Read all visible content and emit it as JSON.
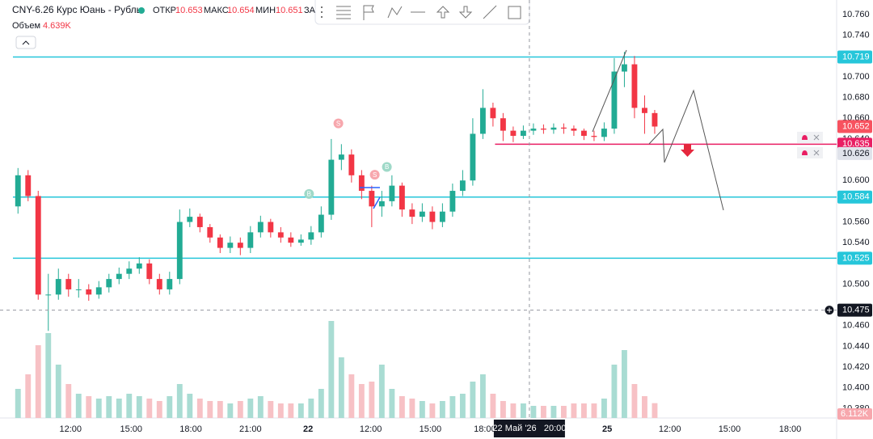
{
  "chart_data": {
    "type": "candlestick",
    "title": "CNY-6.26 Курс Юань - Рубль",
    "header": {
      "open_label": "ОТКР",
      "open": 10.653,
      "high_label": "МАКС",
      "high": 10.654,
      "low_label": "МИН",
      "low": 10.651,
      "cut_label": "ЗА"
    },
    "up_color": "#22ab94",
    "down_color": "#f23645",
    "volume_up_color": "#a9dcd3",
    "volume_down_color": "#f7c1c5",
    "xlim": [
      0,
      81.5
    ],
    "ylim": [
      10.371,
      10.774
    ],
    "yticks": [
      {
        "value": 10.76,
        "label": "10.760"
      },
      {
        "value": 10.74,
        "label": "10.740"
      },
      {
        "value": 10.7,
        "label": "10.700"
      },
      {
        "value": 10.68,
        "label": "10.680"
      },
      {
        "value": 10.66,
        "label": "10.660"
      },
      {
        "value": 10.64,
        "label": "10.640"
      },
      {
        "value": 10.6,
        "label": "10.600"
      },
      {
        "value": 10.56,
        "label": "10.560"
      },
      {
        "value": 10.54,
        "label": "10.540"
      },
      {
        "value": 10.5,
        "label": "10.500"
      },
      {
        "value": 10.46,
        "label": "10.460"
      },
      {
        "value": 10.44,
        "label": "10.440"
      },
      {
        "value": 10.42,
        "label": "10.420"
      },
      {
        "value": 10.4,
        "label": "10.400"
      },
      {
        "value": 10.38,
        "label": "10.380"
      }
    ],
    "xticks": [
      {
        "value": 5.7,
        "label": "12:00"
      },
      {
        "value": 11.7,
        "label": "15:00"
      },
      {
        "value": 17.6,
        "label": "18:00"
      },
      {
        "value": 23.5,
        "label": "21:00"
      },
      {
        "value": 29.2,
        "label": "22"
      },
      {
        "value": 35.4,
        "label": "12:00"
      },
      {
        "value": 41.3,
        "label": "15:00"
      },
      {
        "value": 46.7,
        "label": "18:00"
      },
      {
        "value": 58.8,
        "label": "25"
      },
      {
        "value": 65,
        "label": "12:00"
      },
      {
        "value": 70.9,
        "label": "15:00"
      },
      {
        "value": 76.9,
        "label": "18:00"
      }
    ],
    "x": [
      0.5,
      1.5,
      2.5,
      3.5,
      4.5,
      5.5,
      6.5,
      7.5,
      8.5,
      9.5,
      10.5,
      11.5,
      12.5,
      13.5,
      14.5,
      15.5,
      16.5,
      17.5,
      18.5,
      19.5,
      20.5,
      21.5,
      22.5,
      23.5,
      24.5,
      25.5,
      26.5,
      27.5,
      28.5,
      29.5,
      30.5,
      31.5,
      32.5,
      33.5,
      34.5,
      35.5,
      36.5,
      37.5,
      38.5,
      39.5,
      40.5,
      41.5,
      42.5,
      43.5,
      44.5,
      45.5,
      46.5,
      47.5,
      48.5,
      49.5,
      50.5,
      51.5,
      52.5,
      53.5,
      54.5,
      55.5,
      56.5,
      57.5,
      58.5,
      59.5,
      60.5,
      61.5,
      62.5,
      63.5
    ],
    "open": [
      10.575,
      10.605,
      10.585,
      10.49,
      10.49,
      10.505,
      10.495,
      10.495,
      10.49,
      10.497,
      10.505,
      10.51,
      10.515,
      10.52,
      10.505,
      10.495,
      10.505,
      10.56,
      10.565,
      10.555,
      10.545,
      10.535,
      10.54,
      10.535,
      10.55,
      10.56,
      10.55,
      10.545,
      10.54,
      10.543,
      10.55,
      10.567,
      10.62,
      10.625,
      10.605,
      10.59,
      10.575,
      10.58,
      10.595,
      10.572,
      10.565,
      10.57,
      10.56,
      10.57,
      10.59,
      10.6,
      10.645,
      10.67,
      10.66,
      10.648,
      10.643,
      10.648,
      10.65,
      10.649,
      10.651,
      10.65,
      10.648,
      10.643,
      10.642,
      10.65,
      10.705,
      10.712,
      10.67,
      10.665
    ],
    "high": [
      10.612,
      10.61,
      10.59,
      10.51,
      10.515,
      10.51,
      10.505,
      10.5,
      10.503,
      10.51,
      10.516,
      10.522,
      10.526,
      10.524,
      10.51,
      10.512,
      10.572,
      10.573,
      10.568,
      10.558,
      10.548,
      10.546,
      10.545,
      10.556,
      10.566,
      10.563,
      10.555,
      10.55,
      10.548,
      10.556,
      10.575,
      10.64,
      10.635,
      10.63,
      10.61,
      10.595,
      10.59,
      10.605,
      10.598,
      10.578,
      10.578,
      10.575,
      10.578,
      10.597,
      10.61,
      10.66,
      10.688,
      10.675,
      10.665,
      10.652,
      10.653,
      10.655,
      10.654,
      10.655,
      10.655,
      10.653,
      10.65,
      10.648,
      10.656,
      10.718,
      10.724,
      10.72,
      10.682,
      10.668
    ],
    "low": [
      10.568,
      10.58,
      10.485,
      10.455,
      10.485,
      10.488,
      10.487,
      10.484,
      10.486,
      10.492,
      10.5,
      10.505,
      10.51,
      10.5,
      10.49,
      10.49,
      10.5,
      10.555,
      10.55,
      10.54,
      10.53,
      10.53,
      10.528,
      10.53,
      10.545,
      10.545,
      10.54,
      10.536,
      10.537,
      10.538,
      10.545,
      10.562,
      10.61,
      10.598,
      10.582,
      10.555,
      10.565,
      10.575,
      10.565,
      10.558,
      10.56,
      10.553,
      10.555,
      10.565,
      10.585,
      10.595,
      10.64,
      10.652,
      10.638,
      10.637,
      10.64,
      10.644,
      10.645,
      10.645,
      10.645,
      10.643,
      10.639,
      10.638,
      10.638,
      10.645,
      10.69,
      10.66,
      10.645,
      10.645
    ],
    "close": [
      10.605,
      10.585,
      10.49,
      10.49,
      10.505,
      10.495,
      10.495,
      10.49,
      10.497,
      10.505,
      10.51,
      10.515,
      10.52,
      10.505,
      10.495,
      10.505,
      10.56,
      10.565,
      10.555,
      10.545,
      10.535,
      10.54,
      10.535,
      10.55,
      10.56,
      10.55,
      10.545,
      10.54,
      10.543,
      10.55,
      10.567,
      10.62,
      10.625,
      10.605,
      10.59,
      10.575,
      10.58,
      10.595,
      10.572,
      10.565,
      10.57,
      10.56,
      10.57,
      10.59,
      10.6,
      10.645,
      10.67,
      10.66,
      10.648,
      10.643,
      10.648,
      10.65,
      10.649,
      10.651,
      10.65,
      10.648,
      10.643,
      10.642,
      10.65,
      10.705,
      10.712,
      10.67,
      10.665,
      10.652
    ],
    "volume": {
      "name": "Объем",
      "header_label": "4.639K",
      "last_label": "6.112K",
      "vlim": [
        0,
        60000
      ],
      "values": [
        12000,
        18000,
        30000,
        35000,
        22000,
        14000,
        10000,
        9000,
        8000,
        9000,
        8000,
        10000,
        9000,
        8000,
        7000,
        9000,
        14000,
        10000,
        8000,
        7000,
        7000,
        6000,
        7000,
        8000,
        9000,
        7000,
        6000,
        6000,
        6000,
        8000,
        12000,
        40000,
        25000,
        18000,
        14000,
        15000,
        22000,
        12000,
        9000,
        8000,
        7000,
        6000,
        7000,
        9000,
        10000,
        15000,
        18000,
        10000,
        7000,
        6000,
        6000,
        5000,
        5000,
        5000,
        5000,
        6000,
        6000,
        6000,
        8000,
        22000,
        28000,
        14000,
        9000,
        6112
      ]
    },
    "levels": [
      {
        "value": 10.719,
        "color": "#26c6da",
        "x_start": 0
      },
      {
        "value": 10.584,
        "color": "#26c6da",
        "x_start": 0
      },
      {
        "value": 10.525,
        "color": "#26c6da",
        "x_start": 0
      },
      {
        "value": 10.635,
        "color": "#e91e63",
        "x_start": 47.7
      }
    ],
    "price_labels": [
      {
        "value": 10.652,
        "color": "#f7525f"
      },
      {
        "value": 10.626,
        "color": "#e0e3eb"
      }
    ],
    "markers": [
      {
        "x": 32.2,
        "y": 10.655,
        "label": "S",
        "color": "#f7a7ad"
      },
      {
        "x": 29.3,
        "y": 10.587,
        "label": "B",
        "color": "#9fd9c8"
      },
      {
        "x": 35.8,
        "y": 10.6055,
        "label": "S",
        "color": "#f7a7ad"
      },
      {
        "x": 37.0,
        "y": 10.613,
        "label": "B",
        "color": "#9fd9c8"
      }
    ],
    "crosshair": {
      "x": 51.1,
      "y": 10.475,
      "x_label": "22 Май '26   20:00"
    }
  }
}
